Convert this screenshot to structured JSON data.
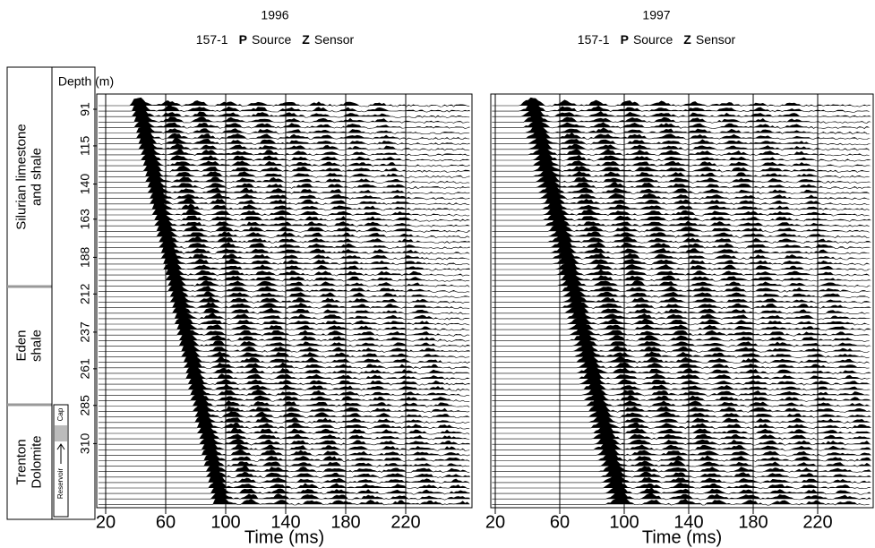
{
  "formations": [
    {
      "lines": [
        "Silurian limestone",
        "and shale"
      ]
    },
    {
      "lines": [
        "Eden",
        "shale"
      ]
    },
    {
      "lines": [
        "Trenton",
        "Dolomite"
      ]
    }
  ],
  "reservoir_labels": [
    "Cap",
    "Reservoir"
  ],
  "depth_axis": {
    "label": "Depth (m)",
    "ticks": [
      91,
      115,
      140,
      163,
      188,
      212,
      237,
      261,
      285,
      310
    ]
  },
  "panels": [
    {
      "year": "1996",
      "well": "157-1",
      "source_type": "P",
      "source_word": "Source",
      "sensor_type": "Z",
      "sensor_word": "Sensor",
      "time_axis": {
        "label": "Time (ms)",
        "ticks": [
          20,
          60,
          100,
          140,
          180,
          220
        ]
      }
    },
    {
      "year": "1997",
      "well": "157-1",
      "source_type": "P",
      "source_word": "Source",
      "sensor_type": "Z",
      "sensor_word": "Sensor",
      "time_axis": {
        "label": "Time (ms)",
        "ticks": [
          20,
          60,
          100,
          140,
          180,
          220
        ]
      }
    }
  ]
}
